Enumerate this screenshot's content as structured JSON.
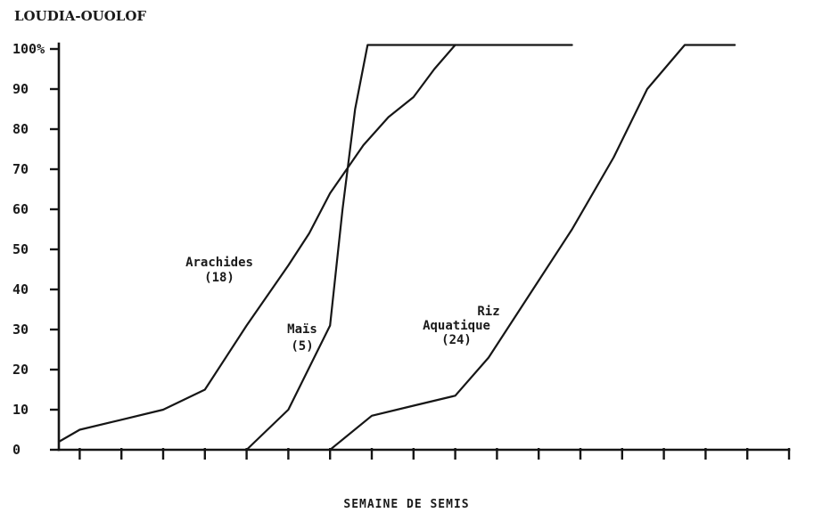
{
  "chart_data": {
    "type": "line",
    "title": "LOUDIA-OUOLOF",
    "xlabel": "SEMAINE DE SEMIS",
    "ylabel": "",
    "ylim": [
      0,
      100
    ],
    "xlim": [
      0,
      18
    ],
    "y_ticks": [
      {
        "value": 0,
        "label": "0"
      },
      {
        "value": 10,
        "label": "10"
      },
      {
        "value": 20,
        "label": "20"
      },
      {
        "value": 30,
        "label": "30"
      },
      {
        "value": 40,
        "label": "40"
      },
      {
        "value": 50,
        "label": "50"
      },
      {
        "value": 60,
        "label": "60"
      },
      {
        "value": 70,
        "label": "70"
      },
      {
        "value": 80,
        "label": "80"
      },
      {
        "value": 90,
        "label": "90"
      },
      {
        "value": 100,
        "label": "100%"
      }
    ],
    "x_ticks": [
      0.5,
      1.5,
      2.5,
      3.5,
      4.5,
      5.5,
      6.5,
      7.5,
      8.5,
      9.5,
      10.5,
      11.5,
      12.5,
      13.5,
      14.5,
      15.5,
      16.5,
      17.5
    ],
    "grid": false,
    "legend": "none",
    "series": [
      {
        "name": "Arachides (18)",
        "label_lines": [
          "Arachides",
          "(18)"
        ],
        "points": [
          [
            0,
            2
          ],
          [
            0.5,
            5
          ],
          [
            1.5,
            7.5
          ],
          [
            2.5,
            10
          ],
          [
            3.5,
            15
          ],
          [
            4.5,
            31
          ],
          [
            5.5,
            46
          ],
          [
            6.0,
            54
          ],
          [
            6.5,
            64
          ],
          [
            7.3,
            76
          ],
          [
            7.9,
            83
          ],
          [
            8.5,
            88
          ],
          [
            9.0,
            95
          ],
          [
            9.5,
            101
          ]
        ]
      },
      {
        "name": "Maïs (5)",
        "label_lines": [
          "Maïs",
          "(5)"
        ],
        "points": [
          [
            4.5,
            0
          ],
          [
            5.5,
            10
          ],
          [
            6.5,
            31
          ],
          [
            6.8,
            60
          ],
          [
            7.1,
            85
          ],
          [
            7.4,
            101
          ],
          [
            12.3,
            101
          ]
        ]
      },
      {
        "name": "Riz Aquatique (24)",
        "label_lines": [
          "Riz",
          "Aquatique",
          "(24)"
        ],
        "points": [
          [
            6.5,
            0
          ],
          [
            7.5,
            8.5
          ],
          [
            8.5,
            11
          ],
          [
            9.5,
            13.5
          ],
          [
            10.3,
            23
          ],
          [
            11.3,
            39
          ],
          [
            12.3,
            55
          ],
          [
            13.3,
            73
          ],
          [
            14.1,
            90
          ],
          [
            15.0,
            101
          ],
          [
            16.2,
            101
          ]
        ]
      }
    ]
  }
}
